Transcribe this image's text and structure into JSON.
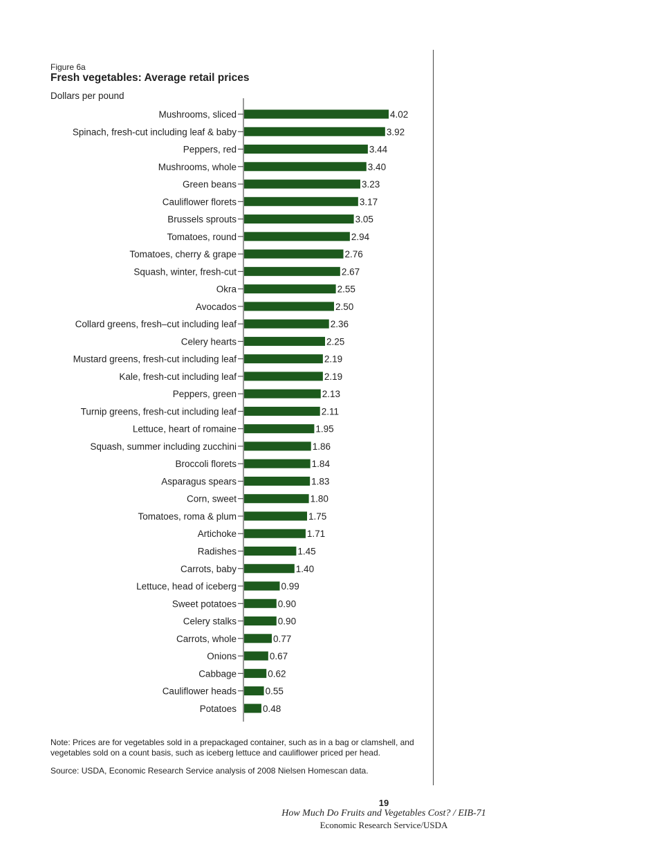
{
  "figure_label": "Figure 6a",
  "footer": {
    "page_number": "19",
    "publication": "How Much Do Fruits and Vegetables Cost? / EIB-71",
    "organization": "Economic Research Service/USDA"
  },
  "colors": {
    "bar": "#1d5a1d",
    "axis": "#555555"
  },
  "chart_data": {
    "type": "bar",
    "orientation": "horizontal",
    "title": "Fresh vegetables: Average retail prices",
    "ylabel": "Dollars per pound",
    "xlabel": "",
    "xlim": [
      0,
      4.5
    ],
    "grid": false,
    "data_labels": true,
    "categories": [
      "Mushrooms, sliced",
      "Spinach, fresh-cut including leaf & baby",
      "Peppers, red",
      "Mushrooms, whole",
      "Green beans",
      "Cauliflower florets",
      "Brussels sprouts",
      "Tomatoes, round",
      "Tomatoes, cherry & grape",
      "Squash, winter, fresh-cut",
      "Okra",
      "Avocados",
      "Collard greens, fresh–cut including leaf",
      "Celery hearts",
      "Mustard greens, fresh-cut including leaf",
      "Kale, fresh-cut including leaf",
      "Peppers, green",
      "Turnip greens, fresh-cut including leaf",
      "Lettuce, heart of romaine",
      "Squash, summer including zucchini",
      "Broccoli florets",
      "Asparagus spears",
      "Corn, sweet",
      "Tomatoes, roma & plum",
      "Artichoke",
      "Radishes",
      "Carrots, baby",
      "Lettuce, head of iceberg",
      "Sweet potatoes",
      "Celery stalks",
      "Carrots, whole",
      "Onions",
      "Cabbage",
      "Cauliflower heads",
      "Potatoes"
    ],
    "values": [
      4.02,
      3.92,
      3.44,
      3.4,
      3.23,
      3.17,
      3.05,
      2.94,
      2.76,
      2.67,
      2.55,
      2.5,
      2.36,
      2.25,
      2.19,
      2.19,
      2.13,
      2.11,
      1.95,
      1.86,
      1.84,
      1.83,
      1.8,
      1.75,
      1.71,
      1.45,
      1.4,
      0.99,
      0.9,
      0.9,
      0.77,
      0.67,
      0.62,
      0.55,
      0.48
    ],
    "value_labels": [
      "4.02",
      "3.92",
      "3.44",
      "3.40",
      "3.23",
      "3.17",
      "3.05",
      "2.94",
      "2.76",
      "2.67",
      "2.55",
      "2.50",
      "2.36",
      "2.25",
      "2.19",
      "2.19",
      "2.13",
      "2.11",
      "1.95",
      "1.86",
      "1.84",
      "1.83",
      "1.80",
      "1.75",
      "1.71",
      "1.45",
      "1.40",
      "0.99",
      "0.90",
      "0.90",
      "0.77",
      "0.67",
      "0.62",
      "0.55",
      "0.48"
    ],
    "note": "Note:  Prices are for vegetables sold in a prepackaged container, such as in a bag or clamshell, and vegetables sold on a count basis, such as iceberg lettuce and cauliflower priced per head.",
    "source": "Source: USDA, Economic Research Service analysis of 2008 Nielsen Homescan data."
  }
}
